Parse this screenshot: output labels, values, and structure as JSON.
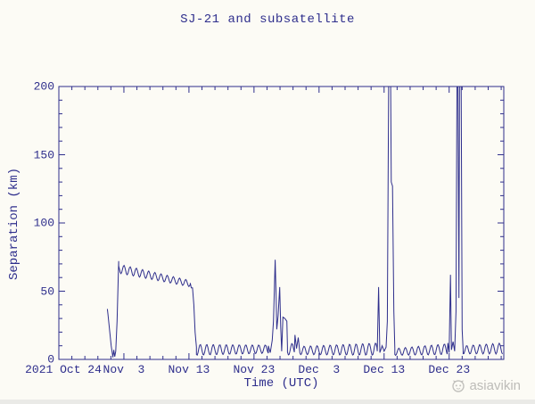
{
  "page": {
    "background": "#fcfbf5",
    "watermark": {
      "label": "asiavikin",
      "icon": "cat-logo-icon",
      "color": "#bdbcb8"
    },
    "bottom_band_color": "#eaeae7"
  },
  "chart_data": {
    "type": "line",
    "title": "SJ-21 and subsatellite",
    "xlabel": "Time (UTC)",
    "ylabel": "Separation (km)",
    "line_color": "#2e2e8c",
    "axis_color": "#2e2e8c",
    "grid": false,
    "legend": null,
    "x_axis": {
      "unit": "days since 2021 Oct 24 00:00 UTC",
      "range_days": [
        0,
        68.4
      ],
      "minor_tick_every_days": 2,
      "major_ticks": [
        {
          "day": 0,
          "label": "2021 Oct 24"
        },
        {
          "day": 10,
          "label": "Nov  3"
        },
        {
          "day": 20,
          "label": "Nov 13"
        },
        {
          "day": 30,
          "label": "Nov 23"
        },
        {
          "day": 40,
          "label": "Dec  3"
        },
        {
          "day": 50,
          "label": "Dec 13"
        },
        {
          "day": 60,
          "label": "Dec 23"
        }
      ]
    },
    "y_axis": {
      "range": [
        0,
        200
      ],
      "major_ticks": [
        0,
        50,
        100,
        150,
        200
      ],
      "minor_tick_every": 10
    },
    "off_scale_value_means_above_200km": 205,
    "segments": [
      {
        "type": "line",
        "points": [
          [
            7.45,
            37
          ],
          [
            7.55,
            33
          ],
          [
            8.05,
            10
          ],
          [
            8.3,
            1.5
          ],
          [
            8.45,
            7
          ],
          [
            8.6,
            2
          ],
          [
            8.75,
            6
          ],
          [
            8.95,
            28
          ],
          [
            9.2,
            72
          ]
        ]
      },
      {
        "type": "wave",
        "d0": 9.2,
        "d1": 20.2,
        "mid0": 66.5,
        "mid1": 55.5,
        "amp0": 3.3,
        "amp1": 2.3,
        "period": 0.95,
        "phase": 0.9
      },
      {
        "type": "line",
        "points": [
          [
            20.2,
            56
          ],
          [
            20.35,
            52.5
          ],
          [
            20.55,
            52.5
          ],
          [
            20.75,
            40
          ],
          [
            20.95,
            20
          ],
          [
            21.15,
            9
          ]
        ]
      },
      {
        "type": "wave",
        "d0": 21.15,
        "d1": 32.2,
        "mid0": 7,
        "mid1": 7.5,
        "amp0": 4,
        "amp1": 3,
        "period": 1.0,
        "phase": 2.6
      },
      {
        "type": "line",
        "points": [
          [
            32.2,
            10
          ],
          [
            32.5,
            5
          ],
          [
            32.8,
            14
          ],
          [
            33.0,
            28
          ],
          [
            33.25,
            73
          ],
          [
            33.4,
            45
          ],
          [
            33.5,
            22
          ],
          [
            33.7,
            32
          ],
          [
            33.95,
            53
          ],
          [
            34.1,
            24
          ],
          [
            34.25,
            6
          ],
          [
            34.45,
            31
          ],
          [
            34.75,
            30
          ],
          [
            35.05,
            28
          ],
          [
            35.15,
            9
          ]
        ]
      },
      {
        "type": "wave",
        "d0": 35.15,
        "d1": 36.2,
        "mid0": 7,
        "mid1": 8,
        "amp0": 4,
        "amp1": 4,
        "period": 1.0,
        "phase": 2.0
      },
      {
        "type": "line",
        "points": [
          [
            36.3,
            18
          ],
          [
            36.55,
            8
          ],
          [
            36.8,
            16
          ],
          [
            37.05,
            5
          ]
        ]
      },
      {
        "type": "wave",
        "d0": 37.05,
        "d1": 48.9,
        "mid0": 6.5,
        "mid1": 7.5,
        "amp0": 3,
        "amp1": 4.5,
        "period": 1.0,
        "phase": 2.2
      },
      {
        "type": "line",
        "points": [
          [
            48.95,
            6
          ],
          [
            49.15,
            53
          ],
          [
            49.35,
            5
          ],
          [
            49.7,
            10
          ],
          [
            50.0,
            6
          ],
          [
            50.3,
            9
          ],
          [
            50.5,
            28
          ],
          [
            50.7,
            205
          ],
          [
            51.0,
            205
          ],
          [
            51.1,
            130
          ],
          [
            51.3,
            127
          ],
          [
            51.5,
            35
          ],
          [
            51.65,
            8
          ]
        ]
      },
      {
        "type": "wave",
        "d0": 51.65,
        "d1": 59.7,
        "mid0": 5.5,
        "mid1": 7.5,
        "amp0": 2.5,
        "amp1": 4,
        "period": 1.0,
        "phase": 2.4
      },
      {
        "type": "line",
        "points": [
          [
            59.8,
            12
          ],
          [
            60.0,
            5
          ],
          [
            60.2,
            62
          ],
          [
            60.35,
            7
          ],
          [
            60.6,
            13
          ],
          [
            60.85,
            6
          ],
          [
            61.05,
            35
          ],
          [
            61.2,
            205
          ],
          [
            61.35,
            205
          ],
          [
            61.5,
            45
          ],
          [
            61.6,
            205
          ],
          [
            61.85,
            205
          ],
          [
            62.0,
            22
          ],
          [
            62.15,
            7
          ]
        ]
      },
      {
        "type": "wave",
        "d0": 62.15,
        "d1": 68.2,
        "mid0": 7,
        "mid1": 8,
        "amp0": 3,
        "amp1": 4,
        "period": 1.0,
        "phase": 2.8
      }
    ]
  }
}
